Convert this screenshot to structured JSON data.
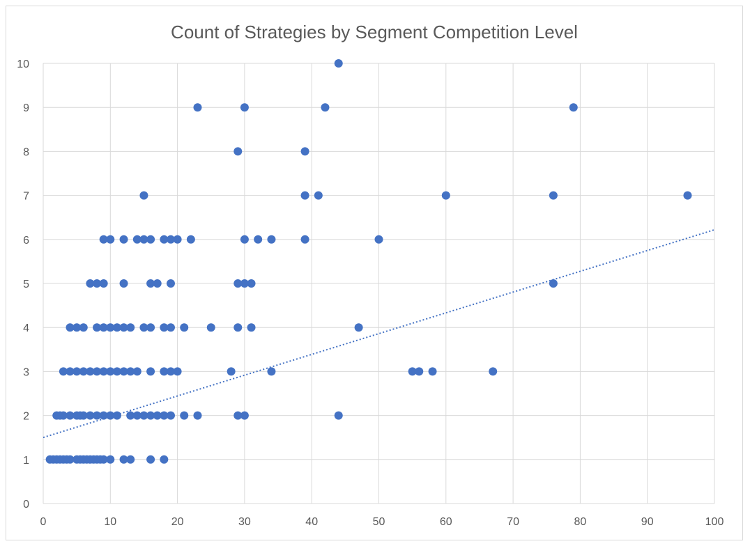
{
  "chart_data": {
    "type": "scatter",
    "title": "Count of Strategies by Segment Competition Level",
    "xlabel": "",
    "ylabel": "",
    "xlim": [
      0,
      100
    ],
    "ylim": [
      0,
      10
    ],
    "x_ticks": [
      0,
      10,
      20,
      30,
      40,
      50,
      60,
      70,
      80,
      90,
      100
    ],
    "y_ticks": [
      0,
      1,
      2,
      3,
      4,
      5,
      6,
      7,
      8,
      9,
      10
    ],
    "grid": true,
    "legend": "none",
    "series": [
      {
        "color": "#4472c4",
        "points": [
          [
            1,
            1
          ],
          [
            2,
            1
          ],
          [
            3,
            1
          ],
          [
            4,
            1
          ],
          [
            5,
            1
          ],
          [
            6,
            1
          ],
          [
            7,
            1
          ],
          [
            8,
            1
          ],
          [
            9,
            1
          ],
          [
            10,
            1
          ],
          [
            12,
            1
          ],
          [
            13,
            1
          ],
          [
            16,
            1
          ],
          [
            18,
            1
          ],
          [
            1.5,
            1
          ],
          [
            2.5,
            1
          ],
          [
            3.5,
            1
          ],
          [
            5.5,
            1
          ],
          [
            6.5,
            1
          ],
          [
            7.5,
            1
          ],
          [
            8.5,
            1
          ],
          [
            2,
            2
          ],
          [
            2.5,
            2
          ],
          [
            3,
            2
          ],
          [
            4,
            2
          ],
          [
            5,
            2
          ],
          [
            5.5,
            2
          ],
          [
            6,
            2
          ],
          [
            7,
            2
          ],
          [
            8,
            2
          ],
          [
            9,
            2
          ],
          [
            10,
            2
          ],
          [
            11,
            2
          ],
          [
            13,
            2
          ],
          [
            14,
            2
          ],
          [
            15,
            2
          ],
          [
            16,
            2
          ],
          [
            17,
            2
          ],
          [
            18,
            2
          ],
          [
            19,
            2
          ],
          [
            21,
            2
          ],
          [
            23,
            2
          ],
          [
            29,
            2
          ],
          [
            30,
            2
          ],
          [
            44,
            2
          ],
          [
            3,
            3
          ],
          [
            4,
            3
          ],
          [
            5,
            3
          ],
          [
            6,
            3
          ],
          [
            7,
            3
          ],
          [
            8,
            3
          ],
          [
            9,
            3
          ],
          [
            10,
            3
          ],
          [
            11,
            3
          ],
          [
            12,
            3
          ],
          [
            13,
            3
          ],
          [
            14,
            3
          ],
          [
            16,
            3
          ],
          [
            18,
            3
          ],
          [
            19,
            3
          ],
          [
            20,
            3
          ],
          [
            28,
            3
          ],
          [
            34,
            3
          ],
          [
            55,
            3
          ],
          [
            56,
            3
          ],
          [
            58,
            3
          ],
          [
            67,
            3
          ],
          [
            4,
            4
          ],
          [
            5,
            4
          ],
          [
            6,
            4
          ],
          [
            8,
            4
          ],
          [
            9,
            4
          ],
          [
            10,
            4
          ],
          [
            11,
            4
          ],
          [
            12,
            4
          ],
          [
            13,
            4
          ],
          [
            15,
            4
          ],
          [
            16,
            4
          ],
          [
            18,
            4
          ],
          [
            19,
            4
          ],
          [
            21,
            4
          ],
          [
            25,
            4
          ],
          [
            29,
            4
          ],
          [
            31,
            4
          ],
          [
            47,
            4
          ],
          [
            7,
            5
          ],
          [
            8,
            5
          ],
          [
            9,
            5
          ],
          [
            12,
            5
          ],
          [
            16,
            5
          ],
          [
            17,
            5
          ],
          [
            19,
            5
          ],
          [
            29,
            5
          ],
          [
            30,
            5
          ],
          [
            31,
            5
          ],
          [
            76,
            5
          ],
          [
            9,
            6
          ],
          [
            10,
            6
          ],
          [
            12,
            6
          ],
          [
            14,
            6
          ],
          [
            15,
            6
          ],
          [
            16,
            6
          ],
          [
            18,
            6
          ],
          [
            19,
            6
          ],
          [
            20,
            6
          ],
          [
            22,
            6
          ],
          [
            30,
            6
          ],
          [
            32,
            6
          ],
          [
            34,
            6
          ],
          [
            39,
            6
          ],
          [
            50,
            6
          ],
          [
            15,
            7
          ],
          [
            39,
            7
          ],
          [
            41,
            7
          ],
          [
            60,
            7
          ],
          [
            76,
            7
          ],
          [
            96,
            7
          ],
          [
            29,
            8
          ],
          [
            39,
            8
          ],
          [
            23,
            9
          ],
          [
            30,
            9
          ],
          [
            42,
            9
          ],
          [
            79,
            9
          ],
          [
            44,
            10
          ]
        ]
      }
    ],
    "trendline": {
      "type": "linear",
      "style": "dotted",
      "color": "#4472c4",
      "start": [
        0,
        1.5
      ],
      "end": [
        100,
        6.22
      ]
    }
  }
}
